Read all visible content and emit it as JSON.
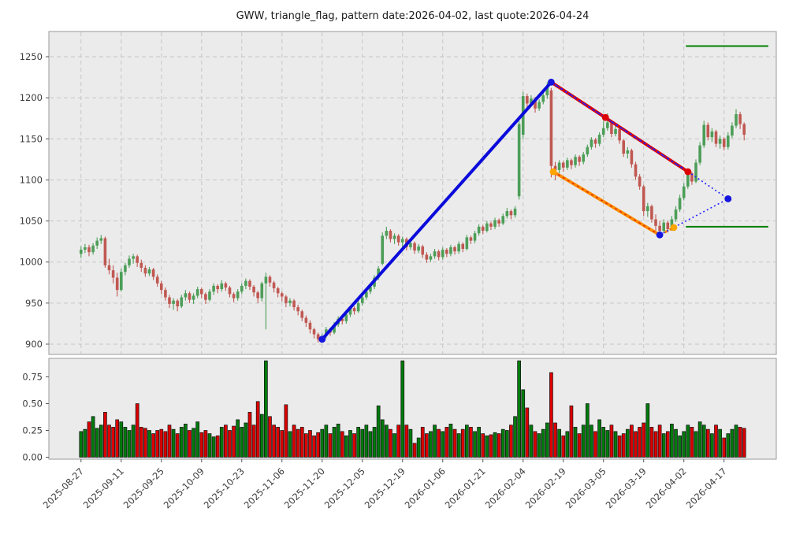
{
  "title": "GWW, triangle_flag, pattern date:2026-04-02, last quote:2026-04-24",
  "symbol": "GWW",
  "pattern_type": "triangle_flag",
  "pattern_date": "2026-04-02",
  "last_quote_date": "2026-04-24",
  "chart_data": {
    "type": "candlestick",
    "title": "GWW, triangle_flag, pattern date:2026-04-02, last quote:2026-04-24",
    "x_tick_labels": [
      "2025-08-27",
      "2025-09-11",
      "2025-09-25",
      "2025-10-09",
      "2025-10-23",
      "2025-11-06",
      "2025-11-20",
      "2025-12-05",
      "2025-12-19",
      "2026-01-06",
      "2026-01-21",
      "2026-02-04",
      "2026-02-19",
      "2026-03-05",
      "2026-03-19",
      "2026-04-02",
      "2026-04-17"
    ],
    "x_tick_day_indices": [
      0,
      10,
      20,
      30,
      40,
      50,
      60,
      70,
      80,
      90,
      100,
      110,
      120,
      130,
      140,
      150,
      160
    ],
    "price_ticks": [
      900,
      950,
      1000,
      1050,
      1100,
      1150,
      1200,
      1250
    ],
    "volume_tick_labels": [
      "0.00",
      "0.25",
      "0.50",
      "0.75"
    ],
    "volume_tick_values": [
      0,
      0.25,
      0.5,
      0.75
    ],
    "axes": {
      "x_day_range": [
        -8,
        173
      ],
      "price_range": [
        887.5,
        1280.7
      ],
      "volume_range": [
        0,
        0.92
      ],
      "grid": "dashed",
      "ylabel": "",
      "xlabel": ""
    },
    "colors": {
      "panel_bg": "#ebebeb",
      "grid": "#c6c6c6",
      "spine": "#999999",
      "tick_text": "#3c3c3c",
      "candle_up": "#4c9e58",
      "candle_down": "#c05852",
      "volume_up": "#007a0c",
      "volume_down": "#dc0000",
      "volume_edge": "#111111",
      "pole_blue": "#0b0bdb",
      "flag_red": "#de0000",
      "flag_orange": "#ff8c00",
      "dotted_blue": "#2222ff",
      "level_green": "#008000",
      "marker_orange": "#ffa500"
    },
    "candles": [
      [
        1010,
        1019,
        1005,
        1015
      ],
      [
        1015,
        1022,
        1011,
        1018
      ],
      [
        1018,
        1021,
        1007,
        1012
      ],
      [
        1012,
        1023,
        1009,
        1020
      ],
      [
        1020,
        1030,
        1016,
        1026
      ],
      [
        1026,
        1033,
        1022,
        1029
      ],
      [
        1029,
        1031,
        993,
        996
      ],
      [
        996,
        1004,
        985,
        990
      ],
      [
        990,
        996,
        974,
        981
      ],
      [
        981,
        987,
        958,
        966
      ],
      [
        966,
        992,
        964,
        988
      ],
      [
        988,
        999,
        984,
        996
      ],
      [
        996,
        1008,
        993,
        1004
      ],
      [
        1004,
        1010,
        998,
        1007
      ],
      [
        1007,
        1009,
        994,
        999
      ],
      [
        999,
        1003,
        988,
        993
      ],
      [
        993,
        996,
        982,
        986
      ],
      [
        986,
        994,
        983,
        991
      ],
      [
        991,
        993,
        978,
        982
      ],
      [
        982,
        985,
        970,
        974
      ],
      [
        974,
        977,
        961,
        966
      ],
      [
        966,
        969,
        953,
        957
      ],
      [
        957,
        960,
        944,
        949
      ],
      [
        949,
        956,
        942,
        953
      ],
      [
        953,
        955,
        940,
        946
      ],
      [
        946,
        960,
        944,
        957
      ],
      [
        957,
        966,
        953,
        962
      ],
      [
        962,
        964,
        950,
        954
      ],
      [
        954,
        962,
        949,
        959
      ],
      [
        959,
        970,
        956,
        967
      ],
      [
        967,
        969,
        956,
        961
      ],
      [
        961,
        963,
        949,
        954
      ],
      [
        954,
        967,
        952,
        964
      ],
      [
        964,
        974,
        960,
        971
      ],
      [
        971,
        973,
        962,
        967
      ],
      [
        967,
        978,
        964,
        974
      ],
      [
        974,
        976,
        965,
        969
      ],
      [
        969,
        971,
        957,
        961
      ],
      [
        961,
        963,
        951,
        956
      ],
      [
        956,
        967,
        953,
        964
      ],
      [
        964,
        974,
        961,
        971
      ],
      [
        971,
        980,
        967,
        977
      ],
      [
        977,
        979,
        966,
        970
      ],
      [
        970,
        972,
        958,
        963
      ],
      [
        963,
        965,
        950,
        956
      ],
      [
        956,
        976,
        952,
        974
      ],
      [
        974,
        987,
        918,
        982
      ],
      [
        982,
        984,
        970,
        975
      ],
      [
        975,
        977,
        963,
        968
      ],
      [
        968,
        970,
        957,
        962
      ],
      [
        962,
        964,
        952,
        958
      ],
      [
        958,
        960,
        945,
        950
      ],
      [
        950,
        956,
        946,
        953
      ],
      [
        953,
        955,
        941,
        945
      ],
      [
        945,
        948,
        935,
        940
      ],
      [
        940,
        942,
        928,
        932
      ],
      [
        932,
        935,
        921,
        926
      ],
      [
        926,
        929,
        913,
        918
      ],
      [
        918,
        920,
        907,
        912
      ],
      [
        912,
        914,
        902,
        906
      ],
      [
        906,
        913,
        903,
        910
      ],
      [
        910,
        921,
        907,
        918
      ],
      [
        918,
        920,
        910,
        914
      ],
      [
        914,
        927,
        912,
        924
      ],
      [
        924,
        934,
        921,
        931
      ],
      [
        931,
        933,
        924,
        928
      ],
      [
        928,
        939,
        925,
        936
      ],
      [
        936,
        947,
        933,
        944
      ],
      [
        944,
        946,
        936,
        940
      ],
      [
        940,
        953,
        938,
        950
      ],
      [
        950,
        960,
        947,
        957
      ],
      [
        957,
        967,
        954,
        964
      ],
      [
        964,
        973,
        961,
        970
      ],
      [
        970,
        984,
        967,
        981
      ],
      [
        981,
        995,
        978,
        992
      ],
      [
        998,
        1036,
        996,
        1032
      ],
      [
        1032,
        1043,
        1028,
        1038
      ],
      [
        1038,
        1040,
        1024,
        1028
      ],
      [
        1028,
        1035,
        1022,
        1032
      ],
      [
        1032,
        1034,
        1020,
        1024
      ],
      [
        1024,
        1031,
        1018,
        1028
      ],
      [
        1028,
        1030,
        1014,
        1018
      ],
      [
        1018,
        1026,
        1015,
        1023
      ],
      [
        1023,
        1025,
        1010,
        1014
      ],
      [
        1014,
        1022,
        1011,
        1019
      ],
      [
        1019,
        1021,
        1005,
        1009
      ],
      [
        1009,
        1012,
        999,
        1003
      ],
      [
        1003,
        1010,
        1000,
        1007
      ],
      [
        1007,
        1016,
        1004,
        1013
      ],
      [
        1013,
        1015,
        1002,
        1006
      ],
      [
        1006,
        1018,
        1003,
        1015
      ],
      [
        1015,
        1017,
        1006,
        1010
      ],
      [
        1010,
        1021,
        1007,
        1018
      ],
      [
        1018,
        1020,
        1009,
        1013
      ],
      [
        1013,
        1025,
        1010,
        1022
      ],
      [
        1022,
        1024,
        1012,
        1016
      ],
      [
        1016,
        1033,
        1014,
        1030
      ],
      [
        1030,
        1032,
        1022,
        1026
      ],
      [
        1026,
        1038,
        1023,
        1035
      ],
      [
        1035,
        1046,
        1032,
        1043
      ],
      [
        1043,
        1045,
        1034,
        1038
      ],
      [
        1038,
        1050,
        1036,
        1047
      ],
      [
        1047,
        1049,
        1039,
        1043
      ],
      [
        1043,
        1054,
        1040,
        1051
      ],
      [
        1051,
        1053,
        1043,
        1047
      ],
      [
        1047,
        1059,
        1045,
        1056
      ],
      [
        1056,
        1066,
        1053,
        1062
      ],
      [
        1062,
        1064,
        1052,
        1057
      ],
      [
        1057,
        1068,
        1054,
        1065
      ],
      [
        1080,
        1172,
        1076,
        1168
      ],
      [
        1155,
        1207,
        1150,
        1202
      ],
      [
        1202,
        1205,
        1188,
        1193
      ],
      [
        1193,
        1203,
        1190,
        1199
      ],
      [
        1199,
        1201,
        1182,
        1187
      ],
      [
        1187,
        1198,
        1184,
        1195
      ],
      [
        1195,
        1206,
        1192,
        1203
      ],
      [
        1203,
        1219,
        1199,
        1214
      ],
      [
        1209,
        1212,
        1103,
        1117
      ],
      [
        1117,
        1122,
        1100,
        1112
      ],
      [
        1112,
        1124,
        1108,
        1121
      ],
      [
        1121,
        1123,
        1110,
        1115
      ],
      [
        1115,
        1127,
        1112,
        1124
      ],
      [
        1124,
        1126,
        1113,
        1118
      ],
      [
        1118,
        1131,
        1115,
        1128
      ],
      [
        1128,
        1130,
        1117,
        1122
      ],
      [
        1122,
        1134,
        1119,
        1131
      ],
      [
        1131,
        1143,
        1128,
        1140
      ],
      [
        1140,
        1152,
        1137,
        1149
      ],
      [
        1149,
        1151,
        1139,
        1144
      ],
      [
        1144,
        1158,
        1141,
        1155
      ],
      [
        1155,
        1172,
        1152,
        1163
      ],
      [
        1163,
        1181,
        1160,
        1170
      ],
      [
        1170,
        1173,
        1152,
        1156
      ],
      [
        1156,
        1168,
        1153,
        1162
      ],
      [
        1162,
        1164,
        1144,
        1148
      ],
      [
        1148,
        1150,
        1128,
        1132
      ],
      [
        1132,
        1140,
        1126,
        1136
      ],
      [
        1136,
        1138,
        1115,
        1119
      ],
      [
        1119,
        1122,
        1100,
        1104
      ],
      [
        1104,
        1107,
        1088,
        1092
      ],
      [
        1092,
        1094,
        1056,
        1062
      ],
      [
        1062,
        1072,
        1055,
        1068
      ],
      [
        1068,
        1070,
        1048,
        1052
      ],
      [
        1052,
        1058,
        1038,
        1044
      ],
      [
        1044,
        1050,
        1032,
        1038
      ],
      [
        1038,
        1052,
        1035,
        1048
      ],
      [
        1048,
        1050,
        1036,
        1040
      ],
      [
        1040,
        1056,
        1038,
        1052
      ],
      [
        1052,
        1068,
        1049,
        1064
      ],
      [
        1064,
        1082,
        1061,
        1078
      ],
      [
        1078,
        1096,
        1075,
        1092
      ],
      [
        1092,
        1112,
        1089,
        1108
      ],
      [
        1108,
        1110,
        1094,
        1098
      ],
      [
        1098,
        1125,
        1096,
        1121
      ],
      [
        1121,
        1146,
        1118,
        1142
      ],
      [
        1142,
        1172,
        1139,
        1167
      ],
      [
        1167,
        1170,
        1148,
        1152
      ],
      [
        1152,
        1163,
        1146,
        1159
      ],
      [
        1159,
        1161,
        1140,
        1144
      ],
      [
        1144,
        1154,
        1138,
        1150
      ],
      [
        1150,
        1152,
        1136,
        1140
      ],
      [
        1140,
        1158,
        1137,
        1154
      ],
      [
        1154,
        1170,
        1151,
        1166
      ],
      [
        1166,
        1186,
        1163,
        1180
      ],
      [
        1180,
        1183,
        1162,
        1168
      ],
      [
        1168,
        1170,
        1148,
        1155
      ]
    ],
    "volumes": [
      0.24,
      0.26,
      0.33,
      0.38,
      0.27,
      0.3,
      0.42,
      0.3,
      0.28,
      0.35,
      0.33,
      0.28,
      0.25,
      0.3,
      0.5,
      0.28,
      0.27,
      0.25,
      0.22,
      0.25,
      0.26,
      0.24,
      0.3,
      0.26,
      0.22,
      0.28,
      0.31,
      0.25,
      0.27,
      0.33,
      0.23,
      0.25,
      0.22,
      0.19,
      0.2,
      0.28,
      0.3,
      0.25,
      0.29,
      0.35,
      0.28,
      0.32,
      0.42,
      0.3,
      0.52,
      0.4,
      0.9,
      0.38,
      0.3,
      0.28,
      0.25,
      0.49,
      0.24,
      0.3,
      0.26,
      0.28,
      0.22,
      0.25,
      0.2,
      0.23,
      0.26,
      0.3,
      0.22,
      0.28,
      0.31,
      0.24,
      0.2,
      0.25,
      0.22,
      0.28,
      0.26,
      0.3,
      0.24,
      0.28,
      0.48,
      0.35,
      0.3,
      0.26,
      0.22,
      0.3,
      0.9,
      0.3,
      0.26,
      0.13,
      0.18,
      0.28,
      0.22,
      0.24,
      0.3,
      0.26,
      0.24,
      0.28,
      0.31,
      0.26,
      0.22,
      0.26,
      0.3,
      0.28,
      0.24,
      0.28,
      0.22,
      0.2,
      0.21,
      0.23,
      0.22,
      0.26,
      0.25,
      0.3,
      0.38,
      0.9,
      0.63,
      0.46,
      0.3,
      0.24,
      0.22,
      0.26,
      0.32,
      0.79,
      0.32,
      0.26,
      0.2,
      0.24,
      0.48,
      0.28,
      0.22,
      0.3,
      0.5,
      0.3,
      0.24,
      0.35,
      0.28,
      0.25,
      0.3,
      0.24,
      0.2,
      0.22,
      0.26,
      0.3,
      0.24,
      0.28,
      0.32,
      0.5,
      0.28,
      0.24,
      0.3,
      0.22,
      0.24,
      0.31,
      0.26,
      0.2,
      0.24,
      0.3,
      0.28,
      0.24,
      0.33,
      0.3,
      0.26,
      0.22,
      0.3,
      0.26,
      0.18,
      0.22,
      0.26,
      0.3,
      0.28,
      0.27
    ],
    "pattern": {
      "pole": {
        "points": [
          [
            60,
            906
          ],
          [
            117,
            1219
          ]
        ],
        "width": 4
      },
      "flag_top": {
        "points": [
          [
            117,
            1219
          ],
          [
            151,
            1110
          ]
        ],
        "width": 4
      },
      "flag_bottom": {
        "points": [
          [
            117.5,
            1110
          ],
          [
            144,
            1033
          ]
        ],
        "width": 4
      },
      "orange_dash_segment": {
        "points": [
          [
            144,
            1033
          ],
          [
            147.5,
            1042
          ]
        ],
        "width": 3
      },
      "projection_dotted_segments": [
        [
          [
            117,
            1219
          ],
          [
            151,
            1110
          ]
        ],
        [
          [
            151,
            1110
          ],
          [
            161,
            1077
          ]
        ],
        [
          [
            144,
            1033
          ],
          [
            161,
            1077
          ]
        ]
      ],
      "markers": {
        "blue": [
          [
            60,
            906
          ],
          [
            117,
            1219
          ],
          [
            144,
            1033
          ],
          [
            161,
            1077
          ]
        ],
        "red": [
          [
            130.5,
            1176
          ],
          [
            151,
            1110
          ]
        ],
        "orange": [
          [
            117.5,
            1110
          ],
          [
            147.5,
            1042
          ]
        ]
      },
      "levels": [
        {
          "value": 1263,
          "x_range": [
            150.5,
            171
          ]
        },
        {
          "value": 1043,
          "x_range": [
            150.5,
            171
          ]
        }
      ]
    }
  }
}
